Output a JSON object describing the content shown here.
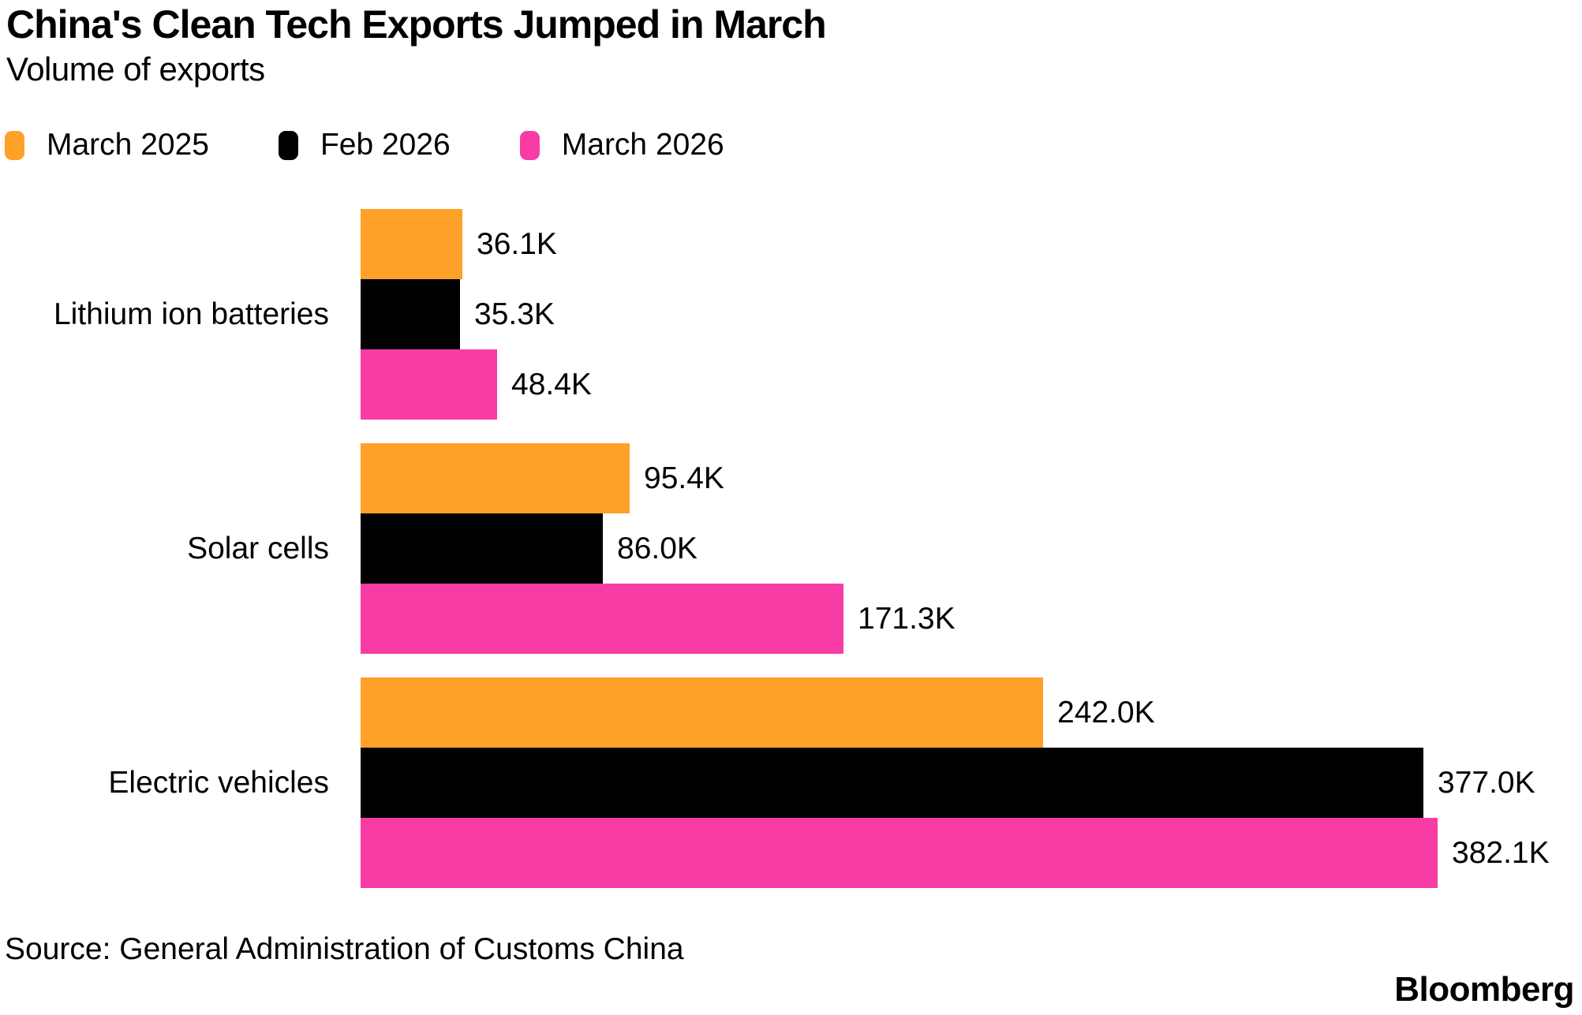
{
  "header": {
    "title": "China's Clean Tech Exports Jumped in March",
    "subtitle": "Volume of exports"
  },
  "legend": [
    {
      "label": "March 2025",
      "color": "#FFA028"
    },
    {
      "label": "Feb 2026",
      "color": "#000000"
    },
    {
      "label": "March 2026",
      "color": "#F83CA6"
    }
  ],
  "chart_data": {
    "type": "bar",
    "orientation": "horizontal",
    "title": "China's Clean Tech Exports Jumped in March",
    "subtitle": "Volume of exports",
    "xlabel": "",
    "ylabel": "",
    "unit": "thousands",
    "grid": false,
    "legend_position": "top-left",
    "categories": [
      "Lithium ion batteries",
      "Solar cells",
      "Electric vehicles"
    ],
    "series": [
      {
        "name": "March 2025",
        "color": "#FFA028",
        "values": [
          36.1,
          95.4,
          242.0
        ],
        "labels": [
          "36.1K",
          "95.4K",
          "242.0K"
        ]
      },
      {
        "name": "Feb 2026",
        "color": "#000000",
        "values": [
          35.3,
          86.0,
          377.0
        ],
        "labels": [
          "35.3K",
          "86.0K",
          "377.0K"
        ]
      },
      {
        "name": "March 2026",
        "color": "#F83CA6",
        "values": [
          48.4,
          171.3,
          382.1
        ],
        "labels": [
          "48.4K",
          "171.3K",
          "382.1K"
        ]
      }
    ],
    "max_value": 382.1,
    "xlim": [
      0,
      382.1
    ]
  },
  "footer": {
    "source": "Source: General Administration of Customs China",
    "brand": "Bloomberg"
  }
}
